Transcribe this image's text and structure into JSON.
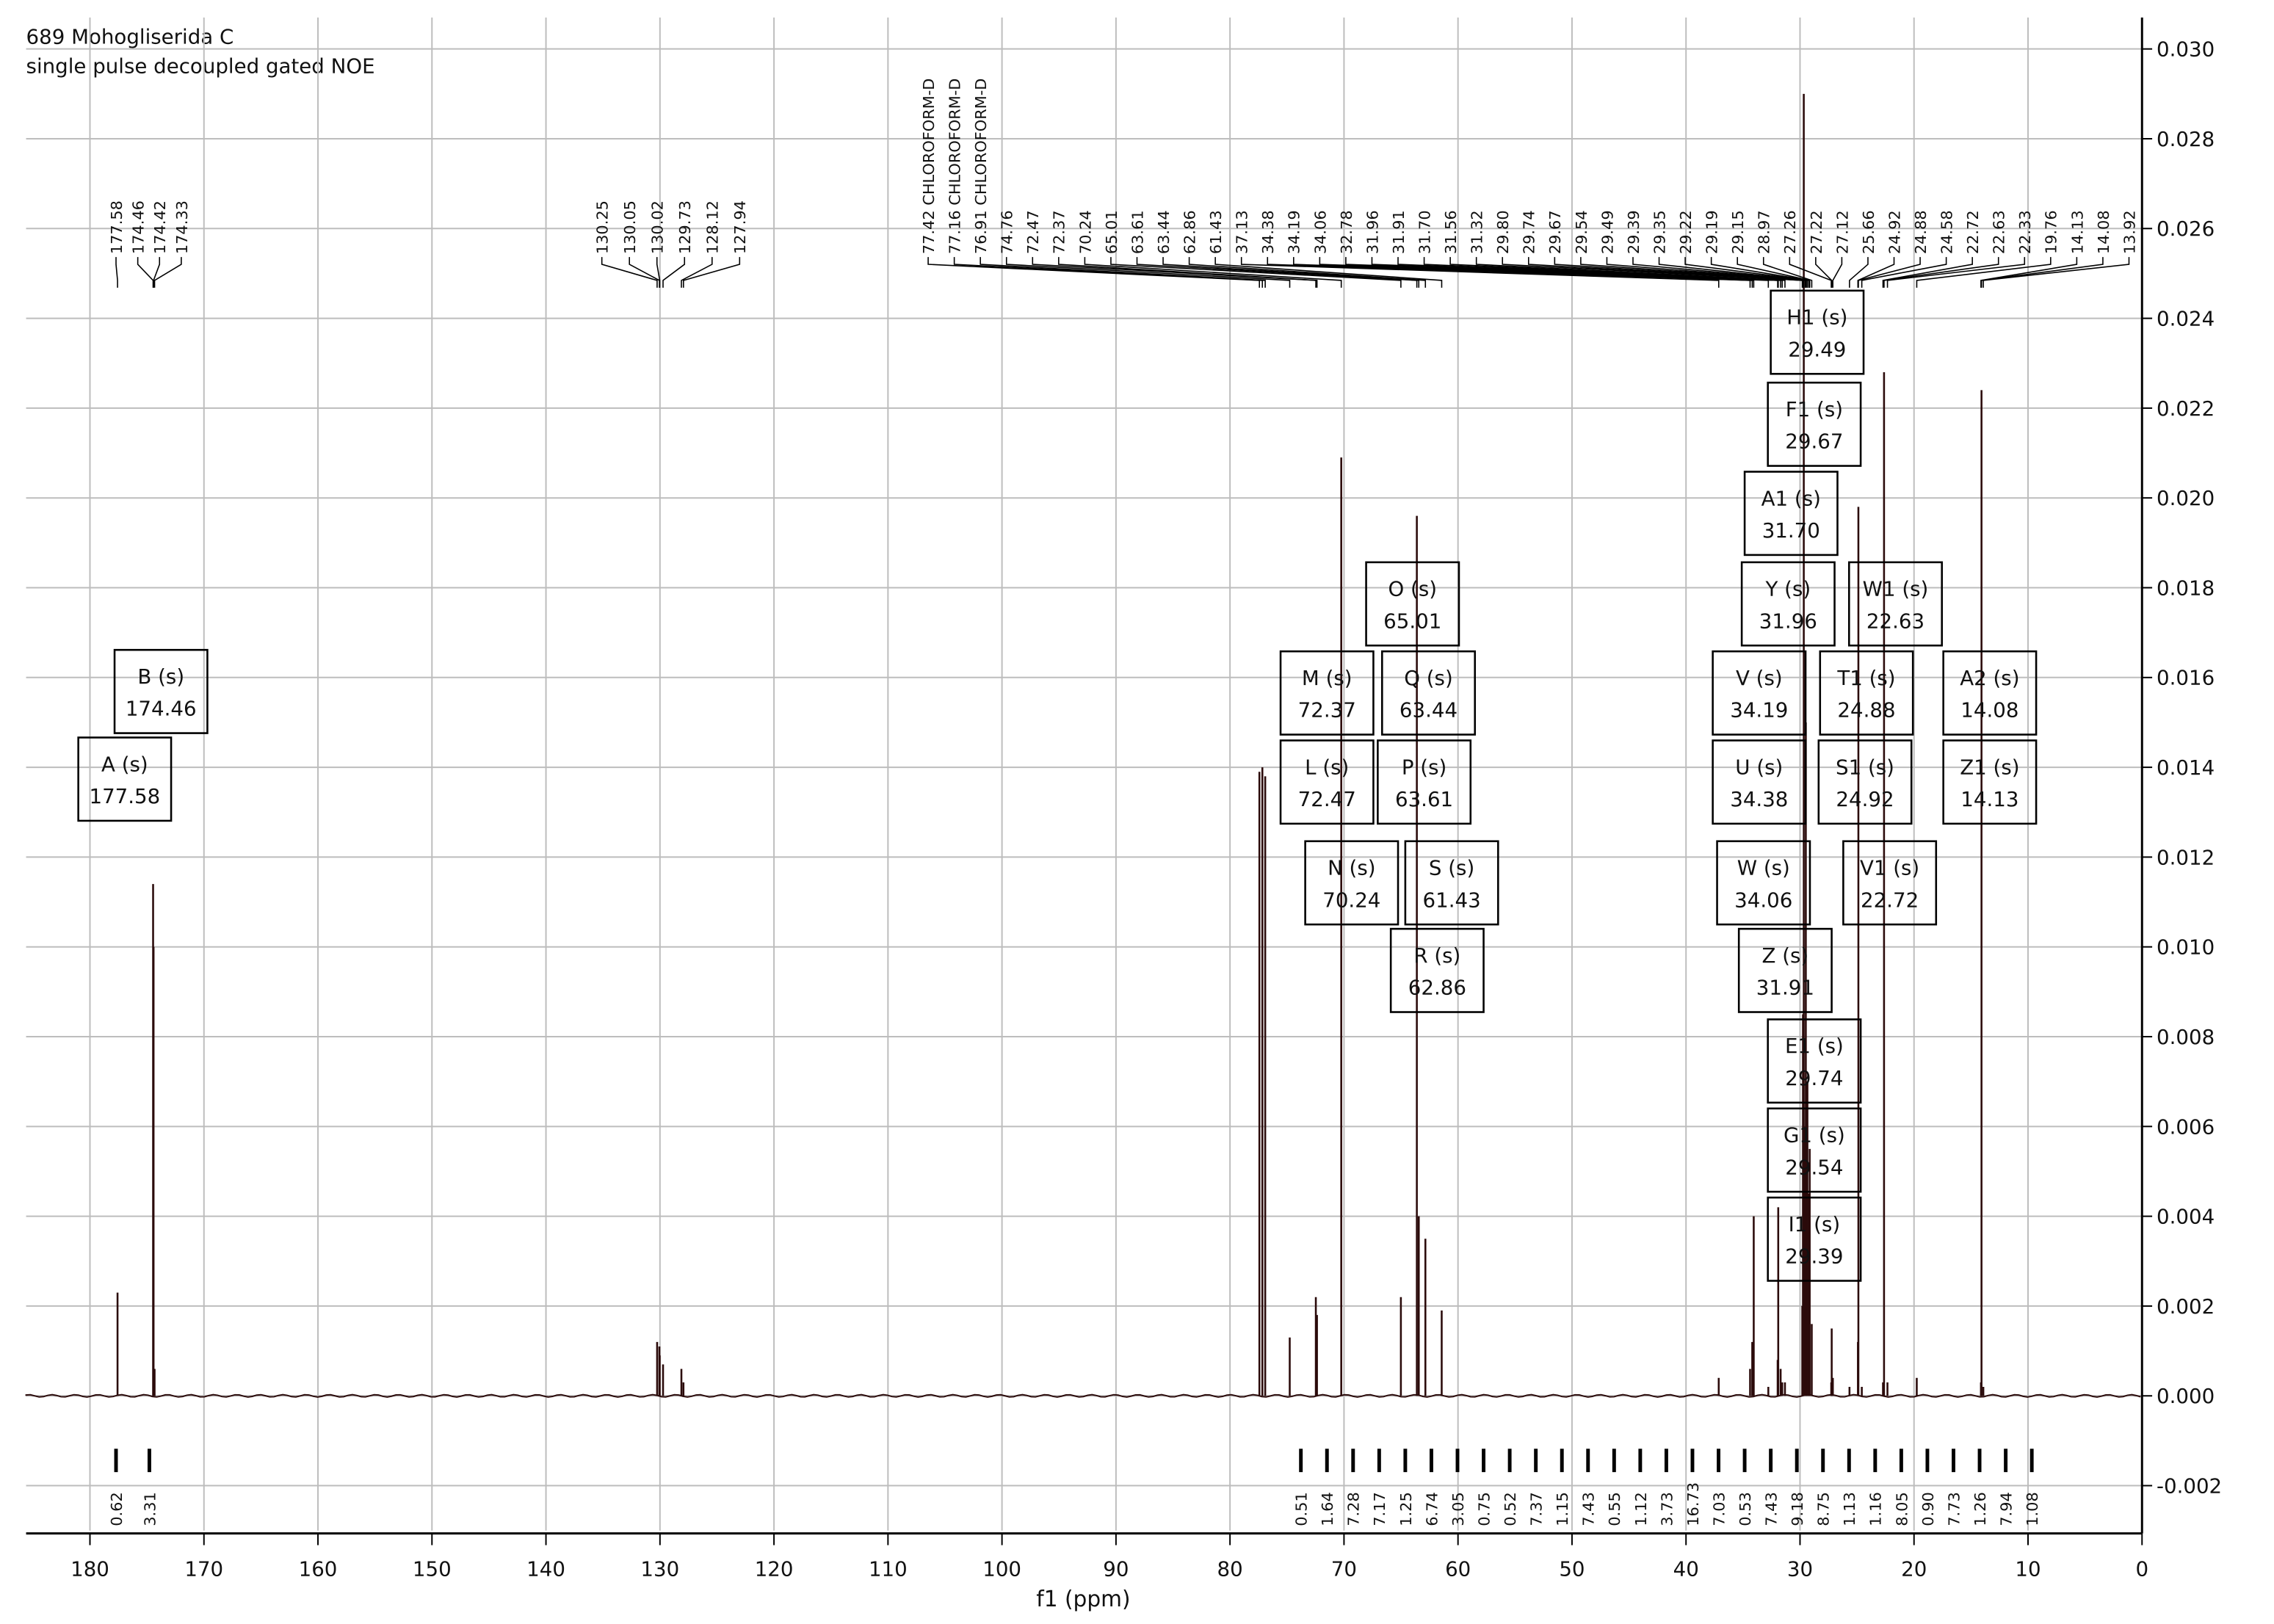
{
  "chart_data": {
    "type": "spectrum",
    "title": "689 Mohogliserida C",
    "subtitle": "single pulse decoupled gated NOE",
    "x_label": "f1 (ppm)",
    "xlim": [
      185.6,
      0
    ],
    "xticks": [
      180,
      170,
      160,
      150,
      140,
      130,
      120,
      110,
      100,
      90,
      80,
      70,
      60,
      50,
      40,
      30,
      20,
      10,
      0
    ],
    "ylim": [
      -0.003,
      0.0307
    ],
    "yticks": [
      {
        "value": -0.002,
        "label": "-0.002"
      },
      {
        "value": 0,
        "label": "0.000"
      },
      {
        "value": 0.002,
        "label": "0.002"
      },
      {
        "value": 0.004,
        "label": "0.004"
      },
      {
        "value": 0.006,
        "label": "0.006"
      },
      {
        "value": 0.008,
        "label": "0.008"
      },
      {
        "value": 0.01,
        "label": "0.010"
      },
      {
        "value": 0.012,
        "label": "0.012"
      },
      {
        "value": 0.014,
        "label": "0.014"
      },
      {
        "value": 0.016,
        "label": "0.016"
      },
      {
        "value": 0.018,
        "label": "0.018"
      },
      {
        "value": 0.02,
        "label": "0.020"
      },
      {
        "value": 0.022,
        "label": "0.022"
      },
      {
        "value": 0.024,
        "label": "0.024"
      },
      {
        "value": 0.026,
        "label": "0.026"
      },
      {
        "value": 0.028,
        "label": "0.028"
      },
      {
        "value": 0.03,
        "label": "0.030"
      }
    ],
    "grid": true,
    "color": "#2b0b0b",
    "peaks": {
      "x": [
        177.58,
        174.46,
        174.42,
        174.33,
        130.25,
        130.05,
        130.02,
        129.73,
        128.12,
        127.94,
        77.42,
        77.16,
        76.91,
        74.76,
        72.47,
        72.37,
        70.24,
        65.01,
        63.61,
        63.44,
        62.86,
        61.43,
        37.13,
        34.38,
        34.19,
        34.06,
        32.78,
        31.96,
        31.91,
        31.7,
        31.56,
        31.32,
        29.8,
        29.74,
        29.67,
        29.54,
        29.49,
        29.39,
        29.35,
        29.22,
        29.19,
        29.15,
        28.97,
        27.26,
        27.22,
        27.12,
        25.66,
        24.92,
        24.88,
        24.58,
        22.72,
        22.63,
        22.33,
        19.76,
        14.13,
        14.08,
        13.92
      ],
      "values": [
        0.0023,
        0.0114,
        0.01,
        0.0006,
        0.0012,
        0.0011,
        0.0009,
        0.0007,
        0.0006,
        0.0003,
        0.0139,
        0.014,
        0.0138,
        0.0013,
        0.0022,
        0.0018,
        0.0209,
        0.0022,
        0.0196,
        0.004,
        0.0035,
        0.0019,
        0.0004,
        0.0006,
        0.0012,
        0.004,
        0.0002,
        0.0008,
        0.0042,
        0.0006,
        0.0003,
        0.0003,
        0.002,
        0.0085,
        0.029,
        0.006,
        0.015,
        0.005,
        0.007,
        0.0045,
        0.004,
        0.0055,
        0.0016,
        0.0003,
        0.0015,
        0.0004,
        0.0002,
        0.0012,
        0.0198,
        0.0002,
        0.0003,
        0.0228,
        0.0003,
        0.0004,
        0.0003,
        0.0224,
        0.0002
      ],
      "x_labels": [
        "177.58",
        "174.46",
        "174.42",
        "174.33",
        "130.25",
        "130.05",
        "130.02",
        "129.73",
        "128.12",
        "127.94",
        "77.42 CHLOROFORM-D",
        "77.16 CHLOROFORM-D",
        "76.91 CHLOROFORM-D",
        "74.76",
        "72.47",
        "72.37",
        "70.24",
        "65.01",
        "63.61",
        "63.44",
        "62.86",
        "61.43",
        "37.13",
        "34.38",
        "34.19",
        "34.06",
        "32.78",
        "31.96",
        "31.91",
        "31.70",
        "31.56",
        "31.32",
        "29.80",
        "29.74",
        "29.67",
        "29.54",
        "29.49",
        "29.39",
        "29.35",
        "29.22",
        "29.19",
        "29.15",
        "28.97",
        "27.26",
        "27.22",
        "27.12",
        "25.66",
        "24.92",
        "24.88",
        "24.58",
        "22.72",
        "22.63",
        "22.33",
        "19.76",
        "14.13",
        "14.08",
        "13.92"
      ]
    },
    "multiplets": [
      {
        "name": "A (s)",
        "shift": 177.58
      },
      {
        "name": "B (s)",
        "shift": 174.46
      },
      {
        "name": "M (s)",
        "shift": 72.37
      },
      {
        "name": "L (s)",
        "shift": 72.47
      },
      {
        "name": "N (s)",
        "shift": 70.24
      },
      {
        "name": "O (s)",
        "shift": 65.01
      },
      {
        "name": "Q (s)",
        "shift": 63.44
      },
      {
        "name": "P (s)",
        "shift": 63.61
      },
      {
        "name": "S (s)",
        "shift": 61.43
      },
      {
        "name": "R (s)",
        "shift": 62.86
      },
      {
        "name": "H1 (s)",
        "shift": 29.49
      },
      {
        "name": "F1 (s)",
        "shift": 29.67
      },
      {
        "name": "A1 (s)",
        "shift": {
          "value": 31.7,
          "label": "31.70"
        }
      },
      {
        "name": "Y (s)",
        "shift": 31.96
      },
      {
        "name": "W1 (s)",
        "shift": 22.63
      },
      {
        "name": "V (s)",
        "shift": 34.19
      },
      {
        "name": "T1 (s)",
        "shift": 24.88
      },
      {
        "name": "A2 (s)",
        "shift": 14.08
      },
      {
        "name": "U (s)",
        "shift": 34.38
      },
      {
        "name": "S1 (s)",
        "shift": 24.92
      },
      {
        "name": "Z1 (s)",
        "shift": 14.13
      },
      {
        "name": "W (s)",
        "shift": 34.06
      },
      {
        "name": "V1 (s)",
        "shift": 22.72
      },
      {
        "name": "Z (s)",
        "shift": 31.91
      },
      {
        "name": "E1 (s)",
        "shift": 29.74
      },
      {
        "name": "G1 (s)",
        "shift": 29.54
      },
      {
        "name": "I1 (s)",
        "shift": 29.39
      }
    ],
    "integrals": {
      "values": [
        0.62,
        3.31,
        0.51,
        1.64,
        7.28,
        7.17,
        1.25,
        6.74,
        3.05,
        0.75,
        0.52,
        7.37,
        1.15,
        7.43,
        0.55,
        1.12,
        3.73,
        16.73,
        7.03,
        0.53,
        7.43,
        9.18,
        8.75,
        1.13,
        1.16,
        8.05,
        0.9,
        7.73,
        1.26,
        7.94,
        1.08
      ],
      "value_labels": [
        "0.62",
        "3.31",
        "0.51",
        "1.64",
        "7.28",
        "7.17",
        "1.25",
        "6.74",
        "3.05",
        "0.75",
        "0.52",
        "7.37",
        "1.15",
        "7.43",
        "0.55",
        "1.12",
        "3.73",
        "16.73",
        "7.03",
        "0.53",
        "7.43",
        "9.18",
        "8.75",
        "1.13",
        "1.16",
        "8.05",
        "0.90",
        "7.73",
        "1.26",
        "7.94",
        "1.08"
      ]
    }
  }
}
